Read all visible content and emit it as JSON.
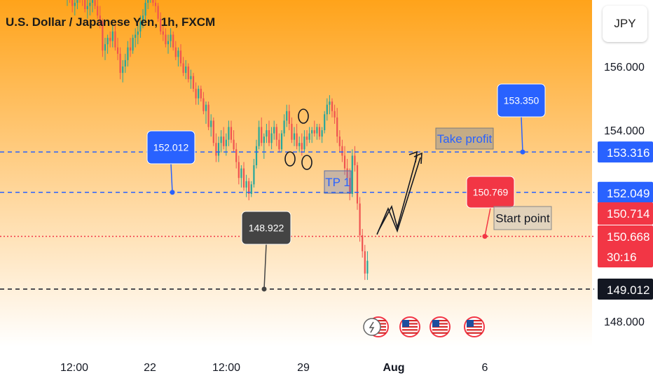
{
  "header": {
    "title": "U.S. Dollar / Japanese Yen, 1h, FXCM",
    "currency_button": "JPY"
  },
  "chart_data": {
    "type": "candlestick",
    "price_axis": {
      "ticks": [
        {
          "value": 156,
          "label": "156.000"
        },
        {
          "value": 154,
          "label": "154.000"
        },
        {
          "value": 148,
          "label": "148.000"
        }
      ]
    },
    "time_axis": {
      "ticks": [
        "12:00",
        "22",
        "12:00",
        "29",
        "Aug",
        "6"
      ]
    },
    "levels": [
      {
        "name": "take-profit",
        "value": 153.316,
        "label": "153.316",
        "color": "#2962ff",
        "style": "dashed"
      },
      {
        "name": "tp1",
        "value": 152.049,
        "label": "152.049",
        "color": "#2962ff",
        "style": "dashed"
      },
      {
        "name": "entry",
        "value": 150.668,
        "label": "150.668",
        "color": "#f23645",
        "style": "dotted"
      },
      {
        "name": "support",
        "value": 149.012,
        "label": "149.012",
        "color": "#131722",
        "style": "dashed"
      }
    ],
    "price_tags": [
      {
        "name": "take-profit-tag",
        "label": "153.316",
        "bg": "#2962ff"
      },
      {
        "name": "tp1-tag",
        "label": "152.049",
        "bg": "#2962ff"
      },
      {
        "name": "last-high-tag",
        "label": "150.714",
        "bg": "#f23645"
      },
      {
        "name": "last-price-tag",
        "label": "150.668",
        "sublabel": "30:16",
        "bg": "#f23645"
      },
      {
        "name": "support-tag",
        "label": "149.012",
        "bg": "#131722"
      }
    ],
    "callouts": [
      {
        "name": "callout-152012",
        "label": "152.012",
        "bg": "#2962ff"
      },
      {
        "name": "callout-153350",
        "label": "153.350",
        "bg": "#2962ff"
      },
      {
        "name": "callout-150769",
        "label": "150.769",
        "bg": "#f23645"
      },
      {
        "name": "callout-148922",
        "label": "148.922",
        "bg": "#444444"
      }
    ],
    "annotations": [
      {
        "name": "take-profit-label",
        "text": "Take profit"
      },
      {
        "name": "tp1-label",
        "text": "TP 1"
      },
      {
        "name": "start-point-label",
        "text": "Start point"
      }
    ],
    "colors": {
      "up": "#26a69a",
      "down": "#ef5350",
      "background_top": "#ffa31a",
      "background_bottom": "#ffffff"
    },
    "candles": [
      [
        158.2,
        158.55,
        157.9,
        158.4
      ],
      [
        158.4,
        158.6,
        158.0,
        158.1
      ],
      [
        158.1,
        158.3,
        157.7,
        157.9
      ],
      [
        157.9,
        158.2,
        157.6,
        158.0
      ],
      [
        158.0,
        158.45,
        157.8,
        158.3
      ],
      [
        158.3,
        158.5,
        158.0,
        158.2
      ],
      [
        158.2,
        158.4,
        157.9,
        158.1
      ],
      [
        158.1,
        158.3,
        157.7,
        157.8
      ],
      [
        157.8,
        158.1,
        157.5,
        157.9
      ],
      [
        157.9,
        158.2,
        157.6,
        158.0
      ],
      [
        158.0,
        158.3,
        157.7,
        158.1
      ],
      [
        158.1,
        158.35,
        157.8,
        157.9
      ],
      [
        157.9,
        158.1,
        157.5,
        157.6
      ],
      [
        157.6,
        157.9,
        157.2,
        157.4
      ],
      [
        157.4,
        157.5,
        156.3,
        156.5
      ],
      [
        156.5,
        156.9,
        156.2,
        156.7
      ],
      [
        156.7,
        157.0,
        156.4,
        156.9
      ],
      [
        156.9,
        157.1,
        156.6,
        156.8
      ],
      [
        156.8,
        157.3,
        156.6,
        157.1
      ],
      [
        157.1,
        157.3,
        156.5,
        156.6
      ],
      [
        156.6,
        156.9,
        156.2,
        156.4
      ],
      [
        156.4,
        156.6,
        155.6,
        155.8
      ],
      [
        155.8,
        156.2,
        155.5,
        156.0
      ],
      [
        156.0,
        156.4,
        155.8,
        156.2
      ],
      [
        156.2,
        156.8,
        156.0,
        156.6
      ],
      [
        156.6,
        156.9,
        156.3,
        156.5
      ],
      [
        156.5,
        157.0,
        156.4,
        156.9
      ],
      [
        156.9,
        157.2,
        156.6,
        157.0
      ],
      [
        157.0,
        157.3,
        156.7,
        157.1
      ],
      [
        157.1,
        157.6,
        156.9,
        157.4
      ],
      [
        157.4,
        157.8,
        157.2,
        157.6
      ],
      [
        157.6,
        158.2,
        157.4,
        158.0
      ],
      [
        158.0,
        158.5,
        157.8,
        158.3
      ],
      [
        158.3,
        158.55,
        158.0,
        158.4
      ],
      [
        158.4,
        158.5,
        157.9,
        158.0
      ],
      [
        158.0,
        158.2,
        157.7,
        157.9
      ],
      [
        157.9,
        158.0,
        157.4,
        157.5
      ],
      [
        157.5,
        157.7,
        157.0,
        157.1
      ],
      [
        157.1,
        157.3,
        156.8,
        157.0
      ],
      [
        157.0,
        157.2,
        156.6,
        156.7
      ],
      [
        156.7,
        157.0,
        156.4,
        156.8
      ],
      [
        156.8,
        157.2,
        156.6,
        157.0
      ],
      [
        157.0,
        157.1,
        156.5,
        156.6
      ],
      [
        156.6,
        156.8,
        156.2,
        156.3
      ],
      [
        156.3,
        156.6,
        156.0,
        156.5
      ],
      [
        156.5,
        156.7,
        156.0,
        156.1
      ],
      [
        156.1,
        156.3,
        155.7,
        155.8
      ],
      [
        155.8,
        156.2,
        155.6,
        156.0
      ],
      [
        156.0,
        156.1,
        155.5,
        155.6
      ],
      [
        155.6,
        155.9,
        155.3,
        155.7
      ],
      [
        155.7,
        155.8,
        155.2,
        155.3
      ],
      [
        155.3,
        155.5,
        154.8,
        155.0
      ],
      [
        155.0,
        155.4,
        154.8,
        155.3
      ],
      [
        155.3,
        155.4,
        154.9,
        155.0
      ],
      [
        155.0,
        155.2,
        154.5,
        154.6
      ],
      [
        154.6,
        154.9,
        154.2,
        154.8
      ],
      [
        154.8,
        154.9,
        154.0,
        154.1
      ],
      [
        154.1,
        154.5,
        153.8,
        154.3
      ],
      [
        154.3,
        154.4,
        153.5,
        153.6
      ],
      [
        153.6,
        153.9,
        153.0,
        153.2
      ],
      [
        153.2,
        153.8,
        153.0,
        153.6
      ],
      [
        153.6,
        154.0,
        153.3,
        153.8
      ],
      [
        153.8,
        154.1,
        153.4,
        153.5
      ],
      [
        153.5,
        153.9,
        153.2,
        153.7
      ],
      [
        153.7,
        154.3,
        153.5,
        154.1
      ],
      [
        154.1,
        154.3,
        153.6,
        153.7
      ],
      [
        153.7,
        154.0,
        153.3,
        153.4
      ],
      [
        153.4,
        153.6,
        152.8,
        153.0
      ],
      [
        153.0,
        153.2,
        152.3,
        152.5
      ],
      [
        152.5,
        152.9,
        152.2,
        152.8
      ],
      [
        152.8,
        153.0,
        152.1,
        152.2
      ],
      [
        152.2,
        152.6,
        151.9,
        152.4
      ],
      [
        152.4,
        152.5,
        151.8,
        152.0
      ],
      [
        152.0,
        152.4,
        151.9,
        152.3
      ],
      [
        152.3,
        153.1,
        152.2,
        152.9
      ],
      [
        152.9,
        153.7,
        152.8,
        153.5
      ],
      [
        153.5,
        154.3,
        153.4,
        154.1
      ],
      [
        154.1,
        154.4,
        153.5,
        153.6
      ],
      [
        153.6,
        153.9,
        153.1,
        153.8
      ],
      [
        153.8,
        154.2,
        153.6,
        154.0
      ],
      [
        154.0,
        154.3,
        153.5,
        153.6
      ],
      [
        153.6,
        154.1,
        153.4,
        153.9
      ],
      [
        153.9,
        154.3,
        153.7,
        154.1
      ],
      [
        154.1,
        154.2,
        153.5,
        153.7
      ],
      [
        153.7,
        153.9,
        153.3,
        153.4
      ],
      [
        153.4,
        154.0,
        153.3,
        153.9
      ],
      [
        153.9,
        154.5,
        153.8,
        154.3
      ],
      [
        154.3,
        154.8,
        154.1,
        154.6
      ],
      [
        154.6,
        154.8,
        154.0,
        154.2
      ],
      [
        154.2,
        154.4,
        153.6,
        153.7
      ],
      [
        153.7,
        154.1,
        153.5,
        153.9
      ],
      [
        153.9,
        154.2,
        153.4,
        153.5
      ],
      [
        153.5,
        153.8,
        153.3,
        153.6
      ],
      [
        153.6,
        153.9,
        153.2,
        153.4
      ],
      [
        153.4,
        154.0,
        153.3,
        153.8
      ],
      [
        153.8,
        154.0,
        153.5,
        153.7
      ],
      [
        153.7,
        154.1,
        153.6,
        153.9
      ],
      [
        153.9,
        154.1,
        153.6,
        154.0
      ],
      [
        154.0,
        154.3,
        153.8,
        153.9
      ],
      [
        153.9,
        154.2,
        153.7,
        154.1
      ],
      [
        154.1,
        154.2,
        153.7,
        153.8
      ],
      [
        153.8,
        154.1,
        153.6,
        154.0
      ],
      [
        154.0,
        154.6,
        153.9,
        154.5
      ],
      [
        154.5,
        155.0,
        154.3,
        154.8
      ],
      [
        154.8,
        155.1,
        154.5,
        154.9
      ],
      [
        154.9,
        155.0,
        154.4,
        154.6
      ],
      [
        154.6,
        154.8,
        154.2,
        154.4
      ],
      [
        154.4,
        154.7,
        153.6,
        153.8
      ],
      [
        153.8,
        154.0,
        153.3,
        153.5
      ],
      [
        153.5,
        153.7,
        153.0,
        153.2
      ],
      [
        153.2,
        153.5,
        152.6,
        152.8
      ],
      [
        152.8,
        153.1,
        152.3,
        152.5
      ],
      [
        152.5,
        152.8,
        151.8,
        152.0
      ],
      [
        152.0,
        153.4,
        151.9,
        153.2
      ],
      [
        153.2,
        153.5,
        152.7,
        152.9
      ],
      [
        152.9,
        153.0,
        151.5,
        151.7
      ],
      [
        151.7,
        151.9,
        150.5,
        150.7
      ],
      [
        150.7,
        150.9,
        150.0,
        150.2
      ],
      [
        150.2,
        150.4,
        149.3,
        149.5
      ],
      [
        149.5,
        150.2,
        149.3,
        149.9
      ]
    ]
  }
}
